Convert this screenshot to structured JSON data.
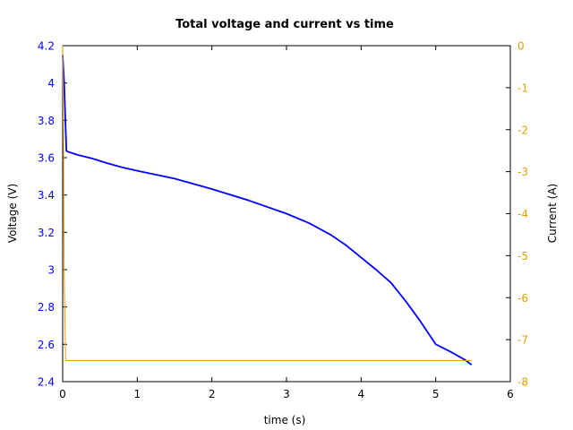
{
  "chart_data": {
    "type": "line",
    "title": "Total voltage and current vs time",
    "xlabel": "time (s)",
    "ylabel_left": "Voltage (V)",
    "ylabel_right": "Current (A)",
    "xlim": [
      0,
      6
    ],
    "ylim_left": [
      2.4,
      4.2
    ],
    "ylim_right": [
      -8,
      0
    ],
    "x_ticks": [
      "0",
      "1",
      "2",
      "3",
      "4",
      "5",
      "6"
    ],
    "y_left_ticks": [
      "2.4",
      "2.6",
      "2.8",
      "3",
      "3.2",
      "3.4",
      "3.6",
      "3.8",
      "4",
      "4.2"
    ],
    "y_right_ticks": [
      "0",
      "-1",
      "-2",
      "-3",
      "-4",
      "-5",
      "-6",
      "-7",
      "-8"
    ],
    "grid": false,
    "colors": {
      "voltage": "#0000ff",
      "current": "#e5a000",
      "left_axis": "#0000ff",
      "right_axis": "#e5a000",
      "frame": "#000000"
    },
    "series": [
      {
        "axis": "left",
        "x": [
          0,
          0.02,
          0.05,
          0.1,
          0.2,
          0.4,
          0.6,
          0.8,
          1.0,
          1.5,
          2.0,
          2.5,
          3.0,
          3.3,
          3.6,
          3.8,
          4.0,
          4.2,
          4.4,
          4.6,
          4.8,
          5.0,
          5.2,
          5.4,
          5.48
        ],
        "y": [
          4.15,
          4.0,
          3.635,
          3.628,
          3.615,
          3.595,
          3.57,
          3.548,
          3.53,
          3.488,
          3.432,
          3.37,
          3.3,
          3.25,
          3.185,
          3.13,
          3.065,
          3.0,
          2.93,
          2.83,
          2.72,
          2.6,
          2.56,
          2.515,
          2.49
        ]
      },
      {
        "axis": "right",
        "x": [
          0,
          0.01,
          0.02,
          0.04,
          0.06,
          5.48
        ],
        "y": [
          0,
          -2.0,
          -5.5,
          -7.5,
          -7.5,
          -7.5
        ]
      }
    ]
  }
}
